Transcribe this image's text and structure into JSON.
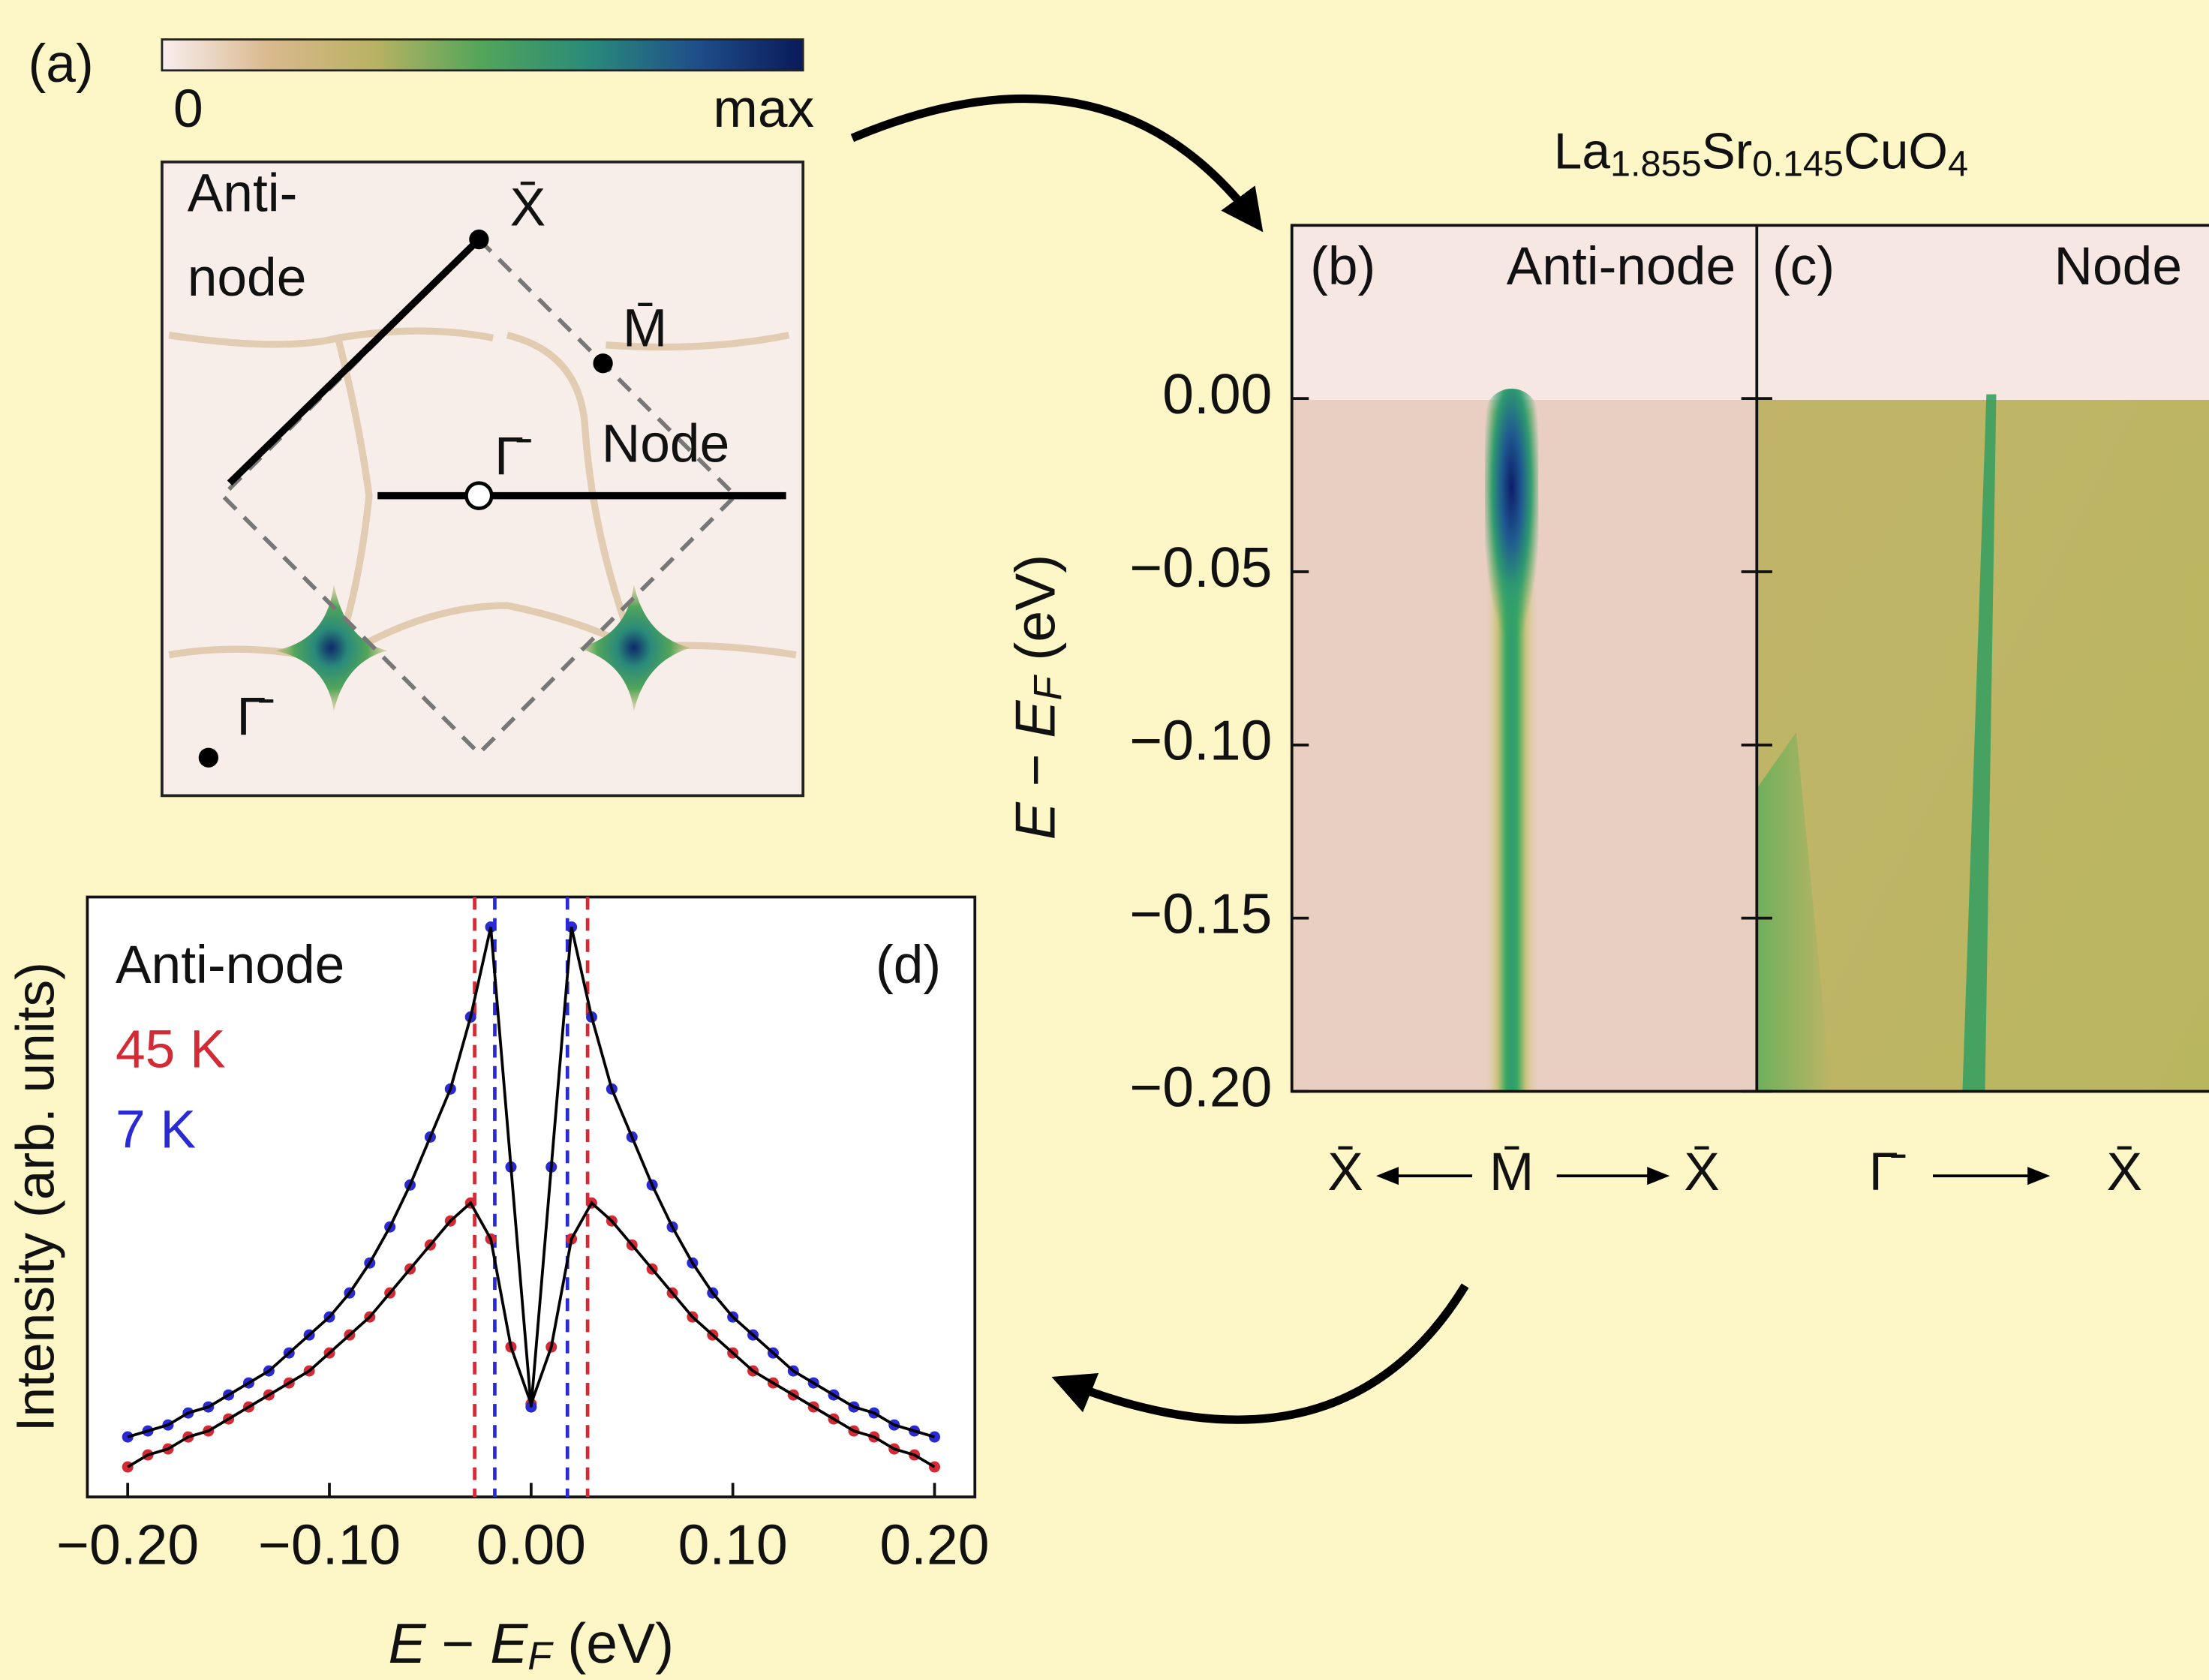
{
  "chart_data": [
    {
      "type": "map",
      "panel_label": "(a)",
      "colorbar": {
        "labels": [
          "0",
          "max"
        ],
        "colors": [
          "#f8eeee",
          "#d9b98e",
          "#b8b262",
          "#52a55a",
          "#2a8a7a",
          "#1f4f8a",
          "#0a1a5a"
        ]
      },
      "labels": {
        "antinode": [
          "Anti-",
          "node"
        ],
        "node": "Node",
        "x_point": "X̄",
        "m_point": "M̄",
        "gamma_center": "Γ̄",
        "gamma_corner": "Γ̄"
      }
    },
    {
      "type": "image",
      "title": [
        "La",
        "1.855",
        "Sr",
        "0.145",
        "CuO",
        "4"
      ],
      "ylabel": [
        "E",
        " − ",
        "E",
        "F",
        " (eV)"
      ],
      "ylim": [
        -0.2,
        0.05
      ],
      "yticks": [
        {
          "value": 0,
          "label": "0.00"
        },
        {
          "value": -0.05,
          "label": "−0.05"
        },
        {
          "value": -0.1,
          "label": "−0.10"
        },
        {
          "value": -0.15,
          "label": "−0.15"
        },
        {
          "value": -0.2,
          "label": "−0.20"
        }
      ],
      "panels": [
        {
          "label": "(b)",
          "name": "Anti-node",
          "path": [
            "X̄",
            "M̄",
            "X̄"
          ]
        },
        {
          "label": "(c)",
          "name": "Node",
          "path": [
            "Γ̄",
            "X̄"
          ]
        }
      ]
    },
    {
      "type": "line",
      "title": "Anti-node",
      "panel_label": "(d)",
      "xlabel": [
        "E",
        " − ",
        "E",
        "F",
        " (eV)"
      ],
      "ylabel": "Intensity (arb. units)",
      "xlim": [
        -0.22,
        0.22
      ],
      "ylim": [
        0,
        1
      ],
      "xticks": [
        {
          "value": -0.2,
          "label": "−0.20"
        },
        {
          "value": -0.1,
          "label": "−0.10"
        },
        {
          "value": 0,
          "label": "0.00"
        },
        {
          "value": 0.1,
          "label": "0.10"
        },
        {
          "value": 0.2,
          "label": "0.20"
        }
      ],
      "fit_color": "#000000",
      "x": [
        -0.2,
        -0.19,
        -0.18,
        -0.17,
        -0.16,
        -0.15,
        -0.14,
        -0.13,
        -0.12,
        -0.11,
        -0.1,
        -0.09,
        -0.08,
        -0.07,
        -0.06,
        -0.05,
        -0.04,
        -0.03,
        -0.02,
        -0.01,
        0,
        0.01,
        0.02,
        0.03,
        0.04,
        0.05,
        0.06,
        0.07,
        0.08,
        0.09,
        0.1,
        0.11,
        0.12,
        0.13,
        0.14,
        0.15,
        0.16,
        0.17,
        0.18,
        0.19,
        0.2
      ],
      "series": [
        {
          "name": "45 K",
          "color": "#d42a35",
          "peak_positions": [
            -0.028,
            0.028
          ],
          "values": [
            0.05,
            0.07,
            0.08,
            0.1,
            0.11,
            0.13,
            0.15,
            0.17,
            0.19,
            0.21,
            0.24,
            0.27,
            0.3,
            0.34,
            0.38,
            0.42,
            0.46,
            0.49,
            0.43,
            0.25,
            0.155,
            0.25,
            0.43,
            0.49,
            0.46,
            0.42,
            0.38,
            0.34,
            0.3,
            0.27,
            0.24,
            0.21,
            0.19,
            0.17,
            0.15,
            0.13,
            0.11,
            0.1,
            0.08,
            0.07,
            0.05
          ]
        },
        {
          "name": "7 K",
          "color": "#2a2ad4",
          "peak_positions": [
            -0.018,
            0.018
          ],
          "values": [
            0.1,
            0.11,
            0.12,
            0.14,
            0.15,
            0.17,
            0.19,
            0.21,
            0.24,
            0.27,
            0.3,
            0.34,
            0.39,
            0.45,
            0.52,
            0.6,
            0.68,
            0.8,
            0.95,
            0.55,
            0.15,
            0.55,
            0.95,
            0.8,
            0.68,
            0.6,
            0.52,
            0.45,
            0.39,
            0.34,
            0.3,
            0.27,
            0.24,
            0.21,
            0.19,
            0.17,
            0.15,
            0.14,
            0.12,
            0.11,
            0.1
          ]
        }
      ]
    }
  ]
}
